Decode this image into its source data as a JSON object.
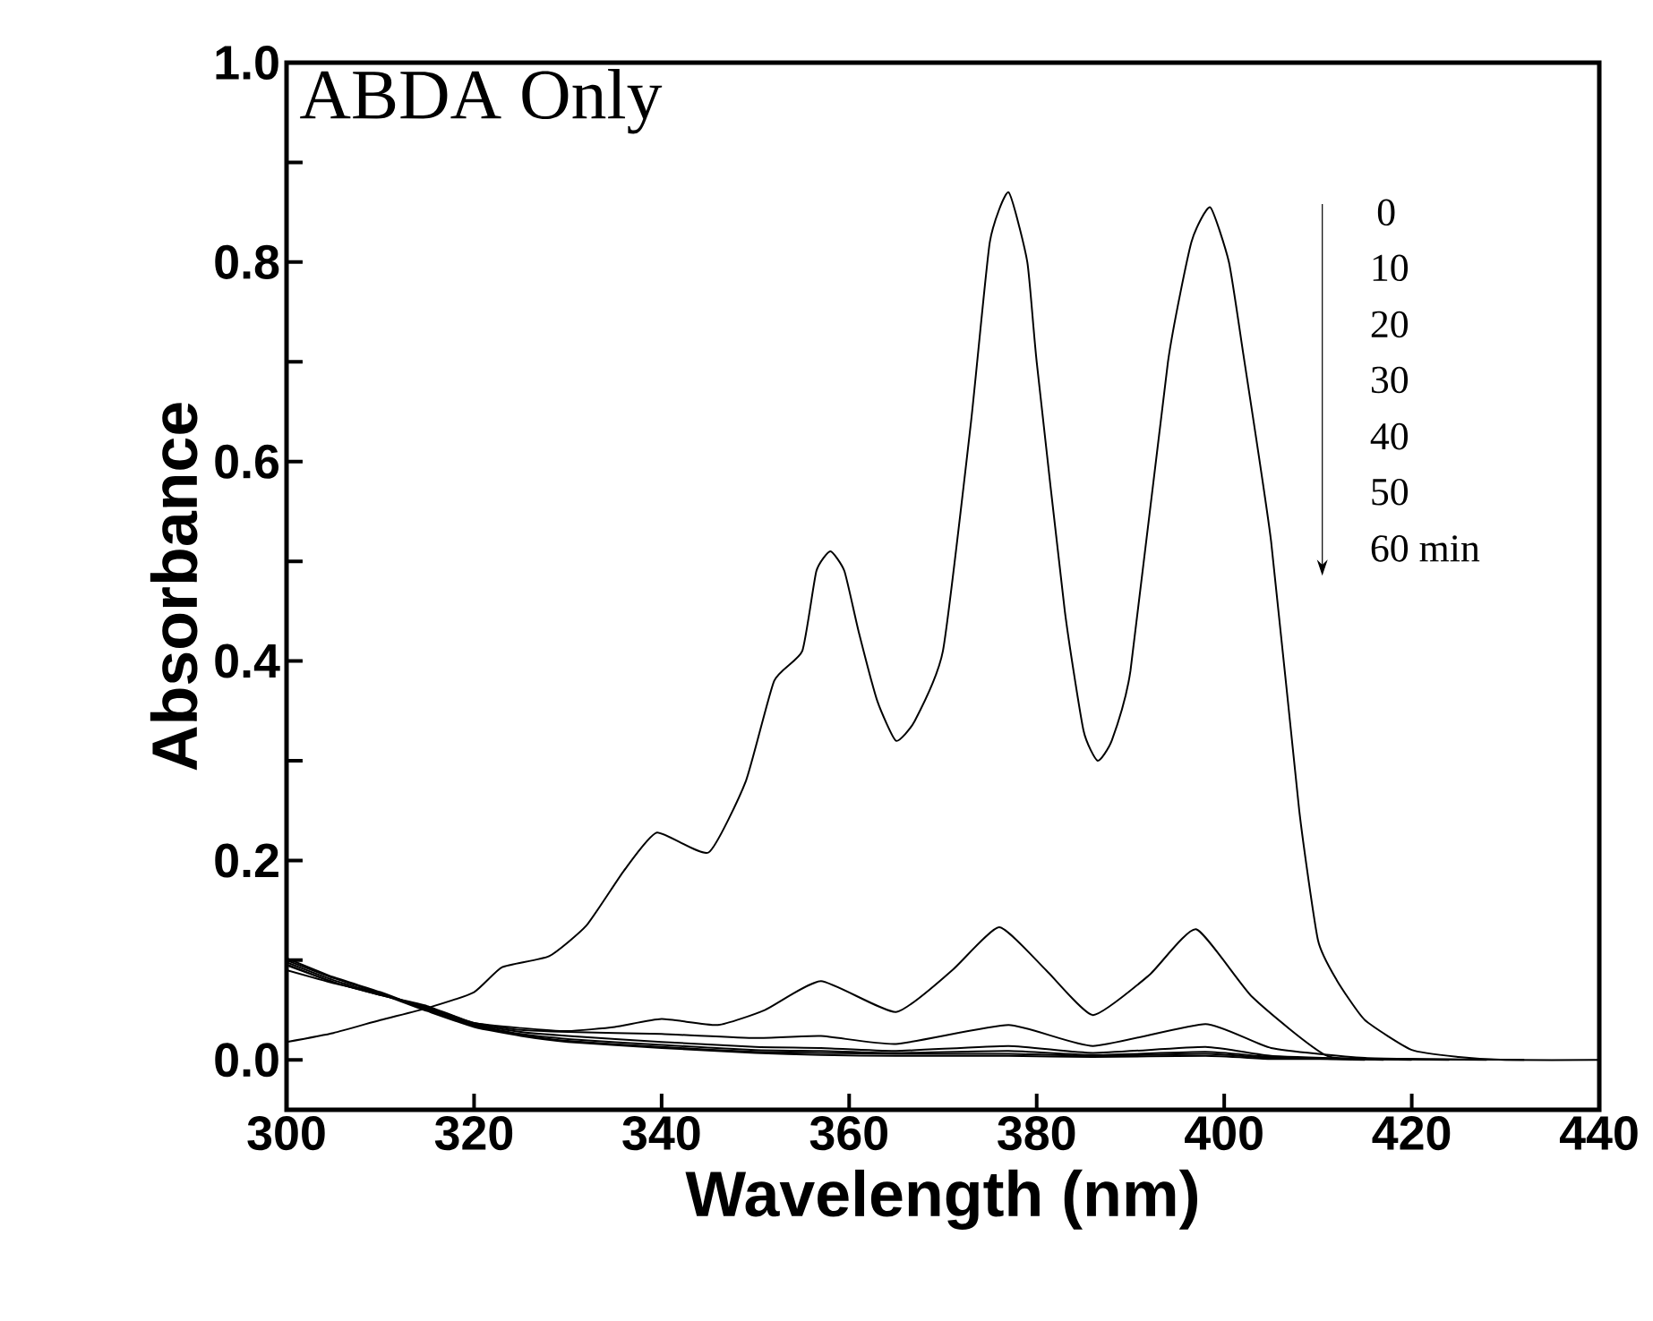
{
  "chart_data": {
    "type": "line",
    "xlabel": "Wavelength (nm)",
    "ylabel": "Absorbance",
    "annotations": [
      "ABDA Only",
      "0",
      "10",
      "20",
      "30",
      "40",
      "50",
      "60 min"
    ],
    "xlim": [
      300,
      440
    ],
    "xticks": [
      300,
      320,
      340,
      360,
      380,
      400,
      420,
      440
    ],
    "ylim": [
      -0.05,
      1.0
    ],
    "yticks": [
      {
        "value": 0,
        "label": "0.0"
      },
      {
        "value": 0.1,
        "label": null
      },
      {
        "value": 0.2,
        "label": "0.2"
      },
      {
        "value": 0.3,
        "label": null
      },
      {
        "value": 0.4,
        "label": "0.4"
      },
      {
        "value": 0.5,
        "label": null
      },
      {
        "value": 0.6,
        "label": "0.6"
      },
      {
        "value": 0.7,
        "label": null
      },
      {
        "value": 0.8,
        "label": "0.8"
      },
      {
        "value": 0.9,
        "label": null
      },
      {
        "value": 1.0,
        "label": "1.0"
      }
    ],
    "grid": false,
    "marker": "none",
    "line_style": "solid",
    "series": [
      {
        "color": "#000000",
        "x": [
          300,
          305,
          310,
          315,
          320,
          323,
          328,
          332,
          336,
          339.5,
          345,
          349,
          352,
          355,
          356.5,
          358,
          359.5,
          361,
          363,
          365,
          367,
          370,
          373,
          375,
          377,
          379,
          380,
          383,
          385,
          386.5,
          388,
          390,
          394,
          396.5,
          398.5,
          400.5,
          402,
          405,
          408,
          410,
          412,
          415,
          420,
          425,
          430,
          440
        ],
        "values": [
          0.018,
          0.027,
          0.04,
          0.052,
          0.068,
          0.093,
          0.104,
          0.135,
          0.19,
          0.228,
          0.208,
          0.28,
          0.38,
          0.41,
          0.49,
          0.51,
          0.49,
          0.43,
          0.36,
          0.32,
          0.34,
          0.41,
          0.64,
          0.82,
          0.87,
          0.8,
          0.7,
          0.45,
          0.33,
          0.3,
          0.32,
          0.39,
          0.7,
          0.82,
          0.855,
          0.8,
          0.71,
          0.52,
          0.25,
          0.12,
          0.08,
          0.04,
          0.01,
          0.003,
          0,
          0
        ]
      },
      {
        "color": "#000000",
        "x": [
          300,
          305,
          310,
          315,
          320,
          325,
          330,
          335,
          340,
          346,
          351,
          357,
          365,
          371,
          376,
          381,
          386,
          392,
          397,
          403,
          411,
          420,
          432
        ],
        "values": [
          0.095,
          0.078,
          0.065,
          0.054,
          0.037,
          0.032,
          0.029,
          0.033,
          0.041,
          0.035,
          0.05,
          0.079,
          0.048,
          0.09,
          0.133,
          0.09,
          0.045,
          0.085,
          0.131,
          0.063,
          0.004,
          0.001,
          0
        ]
      },
      {
        "color": "#000000",
        "x": [
          300,
          305,
          310,
          315,
          320,
          325,
          330,
          340,
          350,
          357,
          365,
          377,
          386,
          398,
          405,
          415,
          428
        ],
        "values": [
          0.096,
          0.078,
          0.065,
          0.053,
          0.037,
          0.03,
          0.028,
          0.026,
          0.022,
          0.024,
          0.016,
          0.035,
          0.014,
          0.036,
          0.012,
          0.002,
          0
        ]
      },
      {
        "color": "#000000",
        "x": [
          300,
          305,
          310,
          315,
          320,
          325,
          330,
          340,
          350,
          357,
          365,
          377,
          386,
          398,
          405,
          415,
          424
        ],
        "values": [
          0.098,
          0.08,
          0.066,
          0.052,
          0.036,
          0.028,
          0.024,
          0.018,
          0.013,
          0.012,
          0.009,
          0.014,
          0.007,
          0.013,
          0.004,
          0.001,
          0
        ]
      },
      {
        "color": "#000000",
        "x": [
          300,
          305,
          310,
          315,
          320,
          325,
          330,
          340,
          350,
          357,
          365,
          377,
          386,
          398,
          405,
          414,
          420
        ],
        "values": [
          0.1,
          0.082,
          0.067,
          0.051,
          0.035,
          0.026,
          0.021,
          0.015,
          0.01,
          0.009,
          0.007,
          0.009,
          0.005,
          0.008,
          0.003,
          0.001,
          0
        ]
      },
      {
        "color": "#000000",
        "x": [
          300,
          305,
          310,
          315,
          320,
          325,
          330,
          340,
          350,
          357,
          365,
          377,
          386,
          398,
          405,
          412,
          417
        ],
        "values": [
          0.102,
          0.083,
          0.068,
          0.05,
          0.034,
          0.025,
          0.019,
          0.013,
          0.008,
          0.007,
          0.006,
          0.006,
          0.004,
          0.006,
          0.002,
          0.001,
          0
        ]
      },
      {
        "color": "#000000",
        "x": [
          300,
          305,
          310,
          315,
          320,
          325,
          330,
          340,
          350,
          357,
          365,
          377,
          386,
          398,
          405,
          411,
          415
        ],
        "values": [
          0.09,
          0.077,
          0.066,
          0.049,
          0.033,
          0.024,
          0.018,
          0.012,
          0.007,
          0.005,
          0.004,
          0.004,
          0.003,
          0.004,
          0.001,
          0.001,
          0
        ]
      }
    ]
  }
}
